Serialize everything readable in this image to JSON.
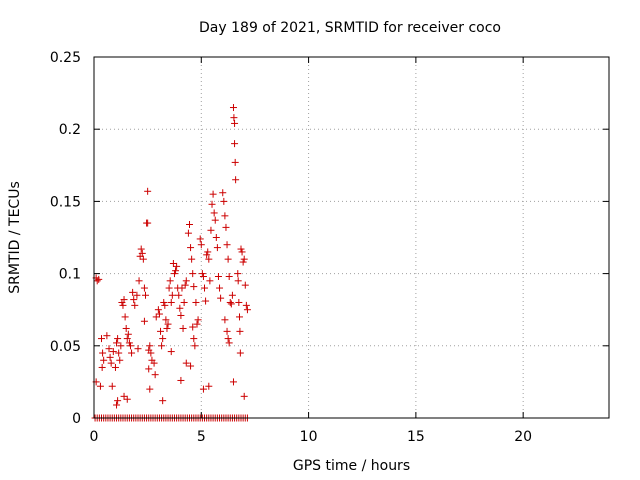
{
  "chart_data": {
    "type": "scatter",
    "title": "Day 189 of 2021, SRMTID for receiver coco",
    "xlabel": "GPS time / hours",
    "ylabel": "SRMTID / TECUs",
    "xlim": [
      0,
      24
    ],
    "ylim": [
      0,
      0.25
    ],
    "xticks": [
      0,
      5,
      10,
      15,
      20
    ],
    "xtick_labels": [
      "0",
      "5",
      "10",
      "15",
      "20"
    ],
    "yticks": [
      0,
      0.05,
      0.1,
      0.15,
      0.2,
      0.25
    ],
    "ytick_labels": [
      "0",
      "0.05",
      "0.1",
      "0.15",
      "0.2",
      "0.25"
    ],
    "grid": true,
    "marker": "plus",
    "color": "#cc0000",
    "series": [
      {
        "name": "SRMTID",
        "points": [
          [
            0.1,
            0.097
          ],
          [
            0.15,
            0.095
          ],
          [
            0.22,
            0.096
          ],
          [
            0.1,
            0.025
          ],
          [
            0.3,
            0.022
          ],
          [
            0.35,
            0.055
          ],
          [
            0.4,
            0.045
          ],
          [
            0.45,
            0.04
          ],
          [
            0.38,
            0.035
          ],
          [
            0.6,
            0.057
          ],
          [
            0.7,
            0.048
          ],
          [
            0.75,
            0.042
          ],
          [
            0.8,
            0.038
          ],
          [
            0.85,
            0.022
          ],
          [
            0.9,
            0.046
          ],
          [
            1.0,
            0.035
          ],
          [
            1.05,
            0.052
          ],
          [
            1.1,
            0.055
          ],
          [
            1.15,
            0.045
          ],
          [
            1.2,
            0.04
          ],
          [
            1.25,
            0.05
          ],
          [
            1.05,
            0.009
          ],
          [
            1.1,
            0.012
          ],
          [
            1.3,
            0.08
          ],
          [
            1.35,
            0.078
          ],
          [
            1.4,
            0.082
          ],
          [
            1.45,
            0.07
          ],
          [
            1.5,
            0.062
          ],
          [
            1.55,
            0.055
          ],
          [
            1.6,
            0.058
          ],
          [
            1.65,
            0.052
          ],
          [
            1.7,
            0.05
          ],
          [
            1.75,
            0.045
          ],
          [
            1.4,
            0.015
          ],
          [
            1.55,
            0.013
          ],
          [
            1.8,
            0.087
          ],
          [
            1.85,
            0.082
          ],
          [
            1.9,
            0.078
          ],
          [
            2.0,
            0.085
          ],
          [
            2.05,
            0.048
          ],
          [
            2.1,
            0.095
          ],
          [
            2.15,
            0.112
          ],
          [
            2.2,
            0.117
          ],
          [
            2.25,
            0.114
          ],
          [
            2.3,
            0.11
          ],
          [
            2.35,
            0.09
          ],
          [
            2.4,
            0.085
          ],
          [
            2.35,
            0.067
          ],
          [
            2.45,
            0.135
          ],
          [
            2.5,
            0.135
          ],
          [
            2.5,
            0.157
          ],
          [
            2.55,
            0.047
          ],
          [
            2.6,
            0.05
          ],
          [
            2.65,
            0.045
          ],
          [
            2.55,
            0.034
          ],
          [
            2.6,
            0.02
          ],
          [
            2.7,
            0.04
          ],
          [
            2.8,
            0.038
          ],
          [
            2.85,
            0.03
          ],
          [
            2.9,
            0.07
          ],
          [
            3.0,
            0.075
          ],
          [
            3.05,
            0.072
          ],
          [
            3.1,
            0.06
          ],
          [
            3.15,
            0.05
          ],
          [
            3.2,
            0.055
          ],
          [
            3.25,
            0.08
          ],
          [
            3.3,
            0.078
          ],
          [
            3.35,
            0.068
          ],
          [
            3.4,
            0.062
          ],
          [
            3.45,
            0.065
          ],
          [
            3.5,
            0.09
          ],
          [
            3.55,
            0.095
          ],
          [
            3.6,
            0.08
          ],
          [
            3.65,
            0.085
          ],
          [
            3.7,
            0.107
          ],
          [
            3.6,
            0.046
          ],
          [
            3.2,
            0.012
          ],
          [
            3.75,
            0.1
          ],
          [
            3.8,
            0.102
          ],
          [
            3.85,
            0.105
          ],
          [
            3.9,
            0.09
          ],
          [
            3.95,
            0.085
          ],
          [
            4.0,
            0.076
          ],
          [
            4.05,
            0.071
          ],
          [
            4.1,
            0.09
          ],
          [
            4.15,
            0.062
          ],
          [
            4.2,
            0.08
          ],
          [
            4.25,
            0.092
          ],
          [
            4.3,
            0.095
          ],
          [
            4.4,
            0.128
          ],
          [
            4.45,
            0.134
          ],
          [
            4.5,
            0.118
          ],
          [
            4.55,
            0.11
          ],
          [
            4.6,
            0.1
          ],
          [
            4.65,
            0.091
          ],
          [
            4.05,
            0.026
          ],
          [
            4.3,
            0.038
          ],
          [
            4.5,
            0.036
          ],
          [
            4.6,
            0.063
          ],
          [
            4.65,
            0.055
          ],
          [
            4.7,
            0.05
          ],
          [
            4.75,
            0.08
          ],
          [
            4.8,
            0.065
          ],
          [
            4.85,
            0.068
          ],
          [
            4.95,
            0.124
          ],
          [
            5.0,
            0.12
          ],
          [
            5.05,
            0.1
          ],
          [
            5.1,
            0.098
          ],
          [
            5.15,
            0.09
          ],
          [
            5.2,
            0.081
          ],
          [
            5.25,
            0.113
          ],
          [
            5.3,
            0.115
          ],
          [
            5.35,
            0.11
          ],
          [
            5.4,
            0.095
          ],
          [
            5.1,
            0.02
          ],
          [
            5.35,
            0.022
          ],
          [
            5.45,
            0.13
          ],
          [
            5.5,
            0.148
          ],
          [
            5.55,
            0.155
          ],
          [
            5.6,
            0.142
          ],
          [
            5.65,
            0.137
          ],
          [
            5.7,
            0.125
          ],
          [
            5.75,
            0.118
          ],
          [
            5.8,
            0.098
          ],
          [
            5.85,
            0.09
          ],
          [
            5.9,
            0.083
          ],
          [
            6.0,
            0.156
          ],
          [
            6.05,
            0.15
          ],
          [
            6.1,
            0.14
          ],
          [
            6.15,
            0.132
          ],
          [
            6.2,
            0.12
          ],
          [
            6.25,
            0.11
          ],
          [
            6.3,
            0.098
          ],
          [
            6.1,
            0.068
          ],
          [
            6.2,
            0.06
          ],
          [
            6.25,
            0.055
          ],
          [
            6.3,
            0.052
          ],
          [
            6.35,
            0.08
          ],
          [
            6.4,
            0.079
          ],
          [
            6.45,
            0.085
          ],
          [
            6.5,
            0.215
          ],
          [
            6.52,
            0.208
          ],
          [
            6.55,
            0.204
          ],
          [
            6.55,
            0.19
          ],
          [
            6.58,
            0.177
          ],
          [
            6.6,
            0.165
          ],
          [
            6.5,
            0.025
          ],
          [
            6.7,
            0.1
          ],
          [
            6.72,
            0.095
          ],
          [
            6.75,
            0.08
          ],
          [
            6.78,
            0.07
          ],
          [
            6.8,
            0.06
          ],
          [
            6.82,
            0.045
          ],
          [
            6.85,
            0.117
          ],
          [
            6.9,
            0.115
          ],
          [
            6.95,
            0.108
          ],
          [
            7.0,
            0.11
          ],
          [
            7.05,
            0.092
          ],
          [
            7.1,
            0.078
          ],
          [
            7.15,
            0.075
          ],
          [
            7.0,
            0.015
          ],
          [
            0.05,
            0
          ],
          [
            0.15,
            0
          ],
          [
            0.25,
            0
          ],
          [
            0.35,
            0
          ],
          [
            0.45,
            0
          ],
          [
            0.55,
            0
          ],
          [
            0.65,
            0
          ],
          [
            0.75,
            0
          ],
          [
            0.85,
            0
          ],
          [
            0.95,
            0
          ],
          [
            1.05,
            0
          ],
          [
            1.15,
            0
          ],
          [
            1.25,
            0
          ],
          [
            1.35,
            0
          ],
          [
            1.45,
            0
          ],
          [
            1.55,
            0
          ],
          [
            1.65,
            0
          ],
          [
            1.75,
            0
          ],
          [
            1.85,
            0
          ],
          [
            1.95,
            0
          ],
          [
            2.05,
            0
          ],
          [
            2.15,
            0
          ],
          [
            2.25,
            0
          ],
          [
            2.35,
            0
          ],
          [
            2.45,
            0
          ],
          [
            2.55,
            0
          ],
          [
            2.65,
            0
          ],
          [
            2.75,
            0
          ],
          [
            2.85,
            0
          ],
          [
            2.95,
            0
          ],
          [
            3.05,
            0
          ],
          [
            3.15,
            0
          ],
          [
            3.25,
            0
          ],
          [
            3.35,
            0
          ],
          [
            3.45,
            0
          ],
          [
            3.55,
            0
          ],
          [
            3.65,
            0
          ],
          [
            3.75,
            0
          ],
          [
            3.85,
            0
          ],
          [
            3.95,
            0
          ],
          [
            4.05,
            0
          ],
          [
            4.15,
            0
          ],
          [
            4.25,
            0
          ],
          [
            4.35,
            0
          ],
          [
            4.45,
            0
          ],
          [
            4.55,
            0
          ],
          [
            4.65,
            0
          ],
          [
            4.75,
            0
          ],
          [
            4.85,
            0
          ],
          [
            4.95,
            0
          ],
          [
            5.05,
            0
          ],
          [
            5.15,
            0
          ],
          [
            5.25,
            0
          ],
          [
            5.35,
            0
          ],
          [
            5.45,
            0
          ],
          [
            5.55,
            0
          ],
          [
            5.65,
            0
          ],
          [
            5.75,
            0
          ],
          [
            5.85,
            0
          ],
          [
            5.95,
            0
          ],
          [
            6.05,
            0
          ],
          [
            6.15,
            0
          ],
          [
            6.25,
            0
          ],
          [
            6.35,
            0
          ],
          [
            6.45,
            0
          ],
          [
            6.55,
            0
          ],
          [
            6.65,
            0
          ],
          [
            6.75,
            0
          ],
          [
            6.85,
            0
          ],
          [
            6.95,
            0
          ],
          [
            7.05,
            0
          ],
          [
            7.15,
            0
          ]
        ]
      }
    ]
  }
}
